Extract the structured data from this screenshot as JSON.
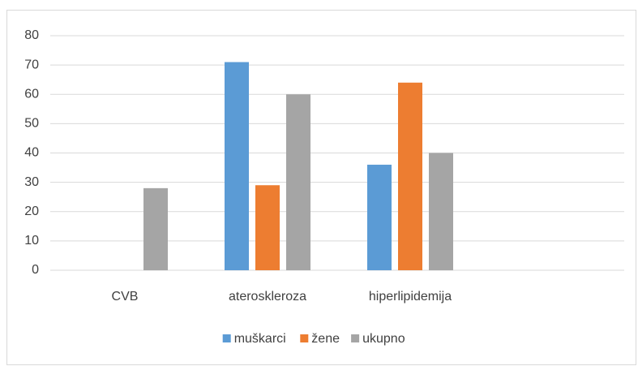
{
  "chart_data": {
    "type": "bar",
    "categories": [
      "CVB",
      "ateroskleroza",
      "hiperlipidemija",
      null
    ],
    "series": [
      {
        "name": "muškarci",
        "color": "#5b9bd5",
        "values": [
          null,
          71,
          36,
          null
        ]
      },
      {
        "name": "žene",
        "color": "#ed7d31",
        "values": [
          null,
          29,
          64,
          null
        ]
      },
      {
        "name": "ukupno",
        "color": "#a5a5a5",
        "values": [
          28,
          60,
          40,
          null
        ]
      }
    ],
    "ylim": [
      0,
      80
    ],
    "yticks": [
      0,
      10,
      20,
      30,
      40,
      50,
      60,
      70,
      80
    ],
    "grid": true,
    "legend": "bottom"
  }
}
